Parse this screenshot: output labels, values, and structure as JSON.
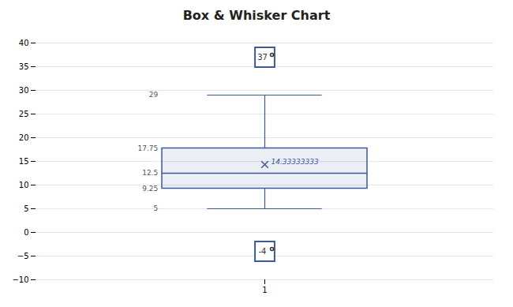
{
  "chart_data": {
    "type": "box",
    "title": "Box & Whisker Chart",
    "categories": [
      "1"
    ],
    "q1": [
      9.25
    ],
    "median": [
      12.5
    ],
    "q3": [
      17.75
    ],
    "mean": [
      14.33333333
    ],
    "whisker_low": [
      5
    ],
    "whisker_high": [
      29
    ],
    "outliers": [
      [
        -4,
        37
      ]
    ],
    "marker": "o",
    "color": "#3a5a9c",
    "ylim": [
      -10,
      40
    ],
    "yticks": [
      -10,
      -5,
      0,
      5,
      10,
      15,
      20,
      25,
      30,
      35,
      40
    ],
    "grid": true,
    "data_labels": true
  }
}
